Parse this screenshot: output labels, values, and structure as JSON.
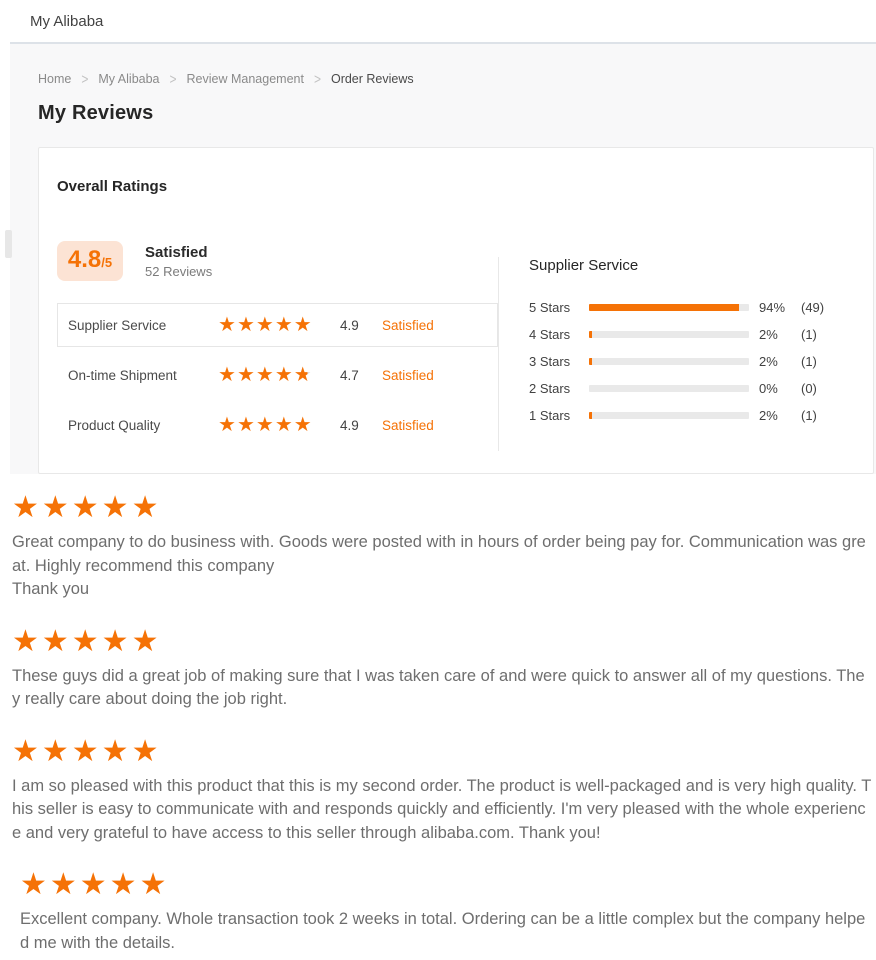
{
  "app": {
    "title": "My Alibaba"
  },
  "breadcrumb": {
    "separator": ">",
    "items": [
      "Home",
      "My Alibaba",
      "Review Management",
      "Order Reviews"
    ]
  },
  "page": {
    "title": "My Reviews"
  },
  "overall": {
    "section_title": "Overall Ratings",
    "score": "4.8",
    "score_suffix": "/5",
    "score_label": "Satisfied",
    "reviews_count": "52 Reviews",
    "categories": [
      {
        "label": "Supplier Service",
        "stars": 5,
        "value": "4.9",
        "status": "Satisfied",
        "selected": true
      },
      {
        "label": "On-time Shipment",
        "stars": 4.7,
        "value": "4.7",
        "status": "Satisfied",
        "selected": false
      },
      {
        "label": "Product Quality",
        "stars": 5,
        "value": "4.9",
        "status": "Satisfied",
        "selected": false
      }
    ]
  },
  "chart_data": {
    "type": "bar",
    "orientation": "horizontal",
    "title": "Supplier Service",
    "categories": [
      "5 Stars",
      "4 Stars",
      "3 Stars",
      "2 Stars",
      "1 Stars"
    ],
    "values": [
      94,
      2,
      2,
      0,
      2
    ],
    "counts": [
      49,
      1,
      1,
      0,
      1
    ],
    "value_format": "percent",
    "xlim": [
      0,
      100
    ],
    "grid": false,
    "legend": false
  },
  "reviews": [
    {
      "stars": 5,
      "text": "Great company to do business with. Goods were posted with in hours of order being pay for. Communication was great. Highly recommend this company\nThank you"
    },
    {
      "stars": 5,
      "text": "These guys did a great job of making sure that I was taken care of and were quick to answer all of my questions. They really care about doing the job right."
    },
    {
      "stars": 5,
      "text": "I am so pleased with this product that this is my second order. The product is well-packaged and is very high quality. This seller is easy to communicate with and responds quickly and efficiently. I'm very pleased with the whole experience and very grateful to have access to this seller through alibaba.com. Thank you!"
    },
    {
      "stars": 5,
      "text": "Excellent company. Whole transaction took 2 weeks in total. Ordering can be a little complex but the company helped me with the details."
    }
  ],
  "colors": {
    "accent": "#f57206",
    "badge_bg": "#fce3d4",
    "bar_track": "#e9e9e9",
    "star_empty": "#dcdcdc"
  }
}
